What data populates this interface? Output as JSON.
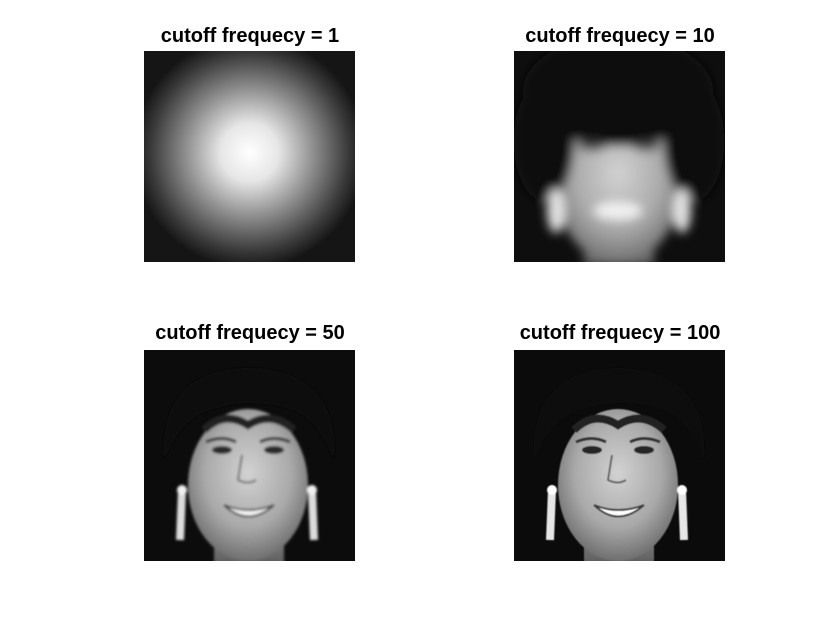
{
  "figure": {
    "background": "#ffffff",
    "panels": [
      {
        "title": "cutoff frequecy = 1",
        "image": "face-lowpass-cutoff-1",
        "blur_level": "extreme"
      },
      {
        "title": "cutoff frequecy = 10",
        "image": "face-lowpass-cutoff-10",
        "blur_level": "strong"
      },
      {
        "title": "cutoff frequecy = 50",
        "image": "face-lowpass-cutoff-50",
        "blur_level": "mild"
      },
      {
        "title": "cutoff frequecy = 100",
        "image": "face-lowpass-cutoff-100",
        "blur_level": "minimal"
      }
    ]
  }
}
